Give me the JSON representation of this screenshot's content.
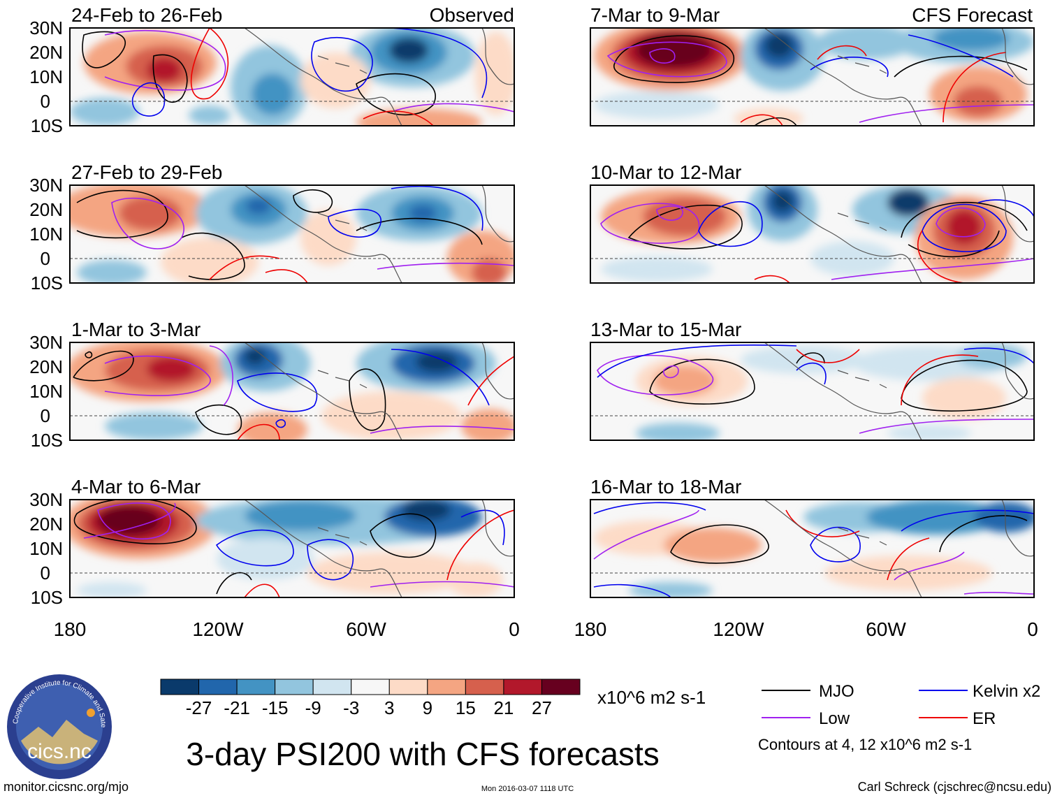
{
  "figure": {
    "title": "3-day PSI200 with CFS forecasts",
    "observed_label": "Observed",
    "forecast_label": "CFS Forecast"
  },
  "panels": [
    {
      "id": "p1",
      "period": "24-Feb to 26-Feb",
      "type": "observed"
    },
    {
      "id": "p2",
      "period": "27-Feb to 29-Feb",
      "type": "observed"
    },
    {
      "id": "p3",
      "period": "1-Mar to 3-Mar",
      "type": "observed"
    },
    {
      "id": "p4",
      "period": "4-Mar to 6-Mar",
      "type": "observed"
    },
    {
      "id": "p5",
      "period": "7-Mar to 9-Mar",
      "type": "forecast"
    },
    {
      "id": "p6",
      "period": "10-Mar to 12-Mar",
      "type": "forecast"
    },
    {
      "id": "p7",
      "period": "13-Mar to 15-Mar",
      "type": "forecast"
    },
    {
      "id": "p8",
      "period": "16-Mar to 18-Mar",
      "type": "forecast"
    }
  ],
  "axes": {
    "lat_labels": [
      "30N",
      "20N",
      "10N",
      "0",
      "10S"
    ],
    "lon_labels": [
      "180",
      "120W",
      "60W",
      "0"
    ]
  },
  "colorbar": {
    "colors": [
      "#0a3a6b",
      "#2166ac",
      "#4393c3",
      "#92c5de",
      "#d1e5f0",
      "#f7f7f7",
      "#fddbc7",
      "#f4a582",
      "#d6604d",
      "#b2182b",
      "#67001f"
    ],
    "ticks": [
      "-27",
      "-21",
      "-15",
      "-9",
      "-3",
      "3",
      "9",
      "15",
      "21",
      "27"
    ],
    "units": "x10^6 m2 s-1"
  },
  "legend": {
    "items": [
      {
        "name": "MJO",
        "color": "#000000"
      },
      {
        "name": "Kelvin x2",
        "color": "#0000ee"
      },
      {
        "name": "Low",
        "color": "#a020f0"
      },
      {
        "name": "ER",
        "color": "#ee0000"
      }
    ],
    "contours_note": "Contours at 4, 12 x10^6 m2 s-1"
  },
  "footer": {
    "site": "monitor.cicsnc.org/mjo",
    "timestamp": "Mon 2016-03-07 1118 UTC",
    "author": "Carl Schreck (cjschrec@ncsu.edu)"
  },
  "logo": {
    "text": "cics.nc",
    "ring_text": "Cooperative Institute for Climate and Satellites"
  }
}
